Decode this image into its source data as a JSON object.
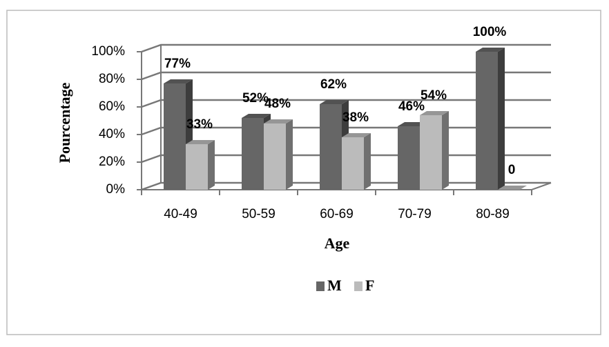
{
  "chart_data": {
    "type": "bar3d",
    "categories": [
      "40-49",
      "50-59",
      "60-69",
      "70-79",
      "80-89"
    ],
    "series": [
      {
        "name": "M",
        "color": "#666666",
        "values": [
          77,
          52,
          62,
          46,
          100
        ],
        "value_labels": [
          "77%",
          "52%",
          "62%",
          "46%",
          "100%"
        ]
      },
      {
        "name": "F",
        "color": "#bbbbbb",
        "values": [
          33,
          48,
          38,
          54,
          0
        ],
        "value_labels": [
          "33%",
          "48%",
          "38%",
          "54%",
          "0"
        ]
      }
    ],
    "ylim": [
      0,
      100
    ],
    "yticks": [
      {
        "value": 0,
        "label": "0%"
      },
      {
        "value": 20,
        "label": "20%"
      },
      {
        "value": 40,
        "label": "40%"
      },
      {
        "value": 60,
        "label": "60%"
      },
      {
        "value": 80,
        "label": "80%"
      },
      {
        "value": 100,
        "label": "100%"
      }
    ],
    "y_label": "Pourcentage",
    "x_label": "Age",
    "grid": true,
    "legend": "bottom"
  }
}
